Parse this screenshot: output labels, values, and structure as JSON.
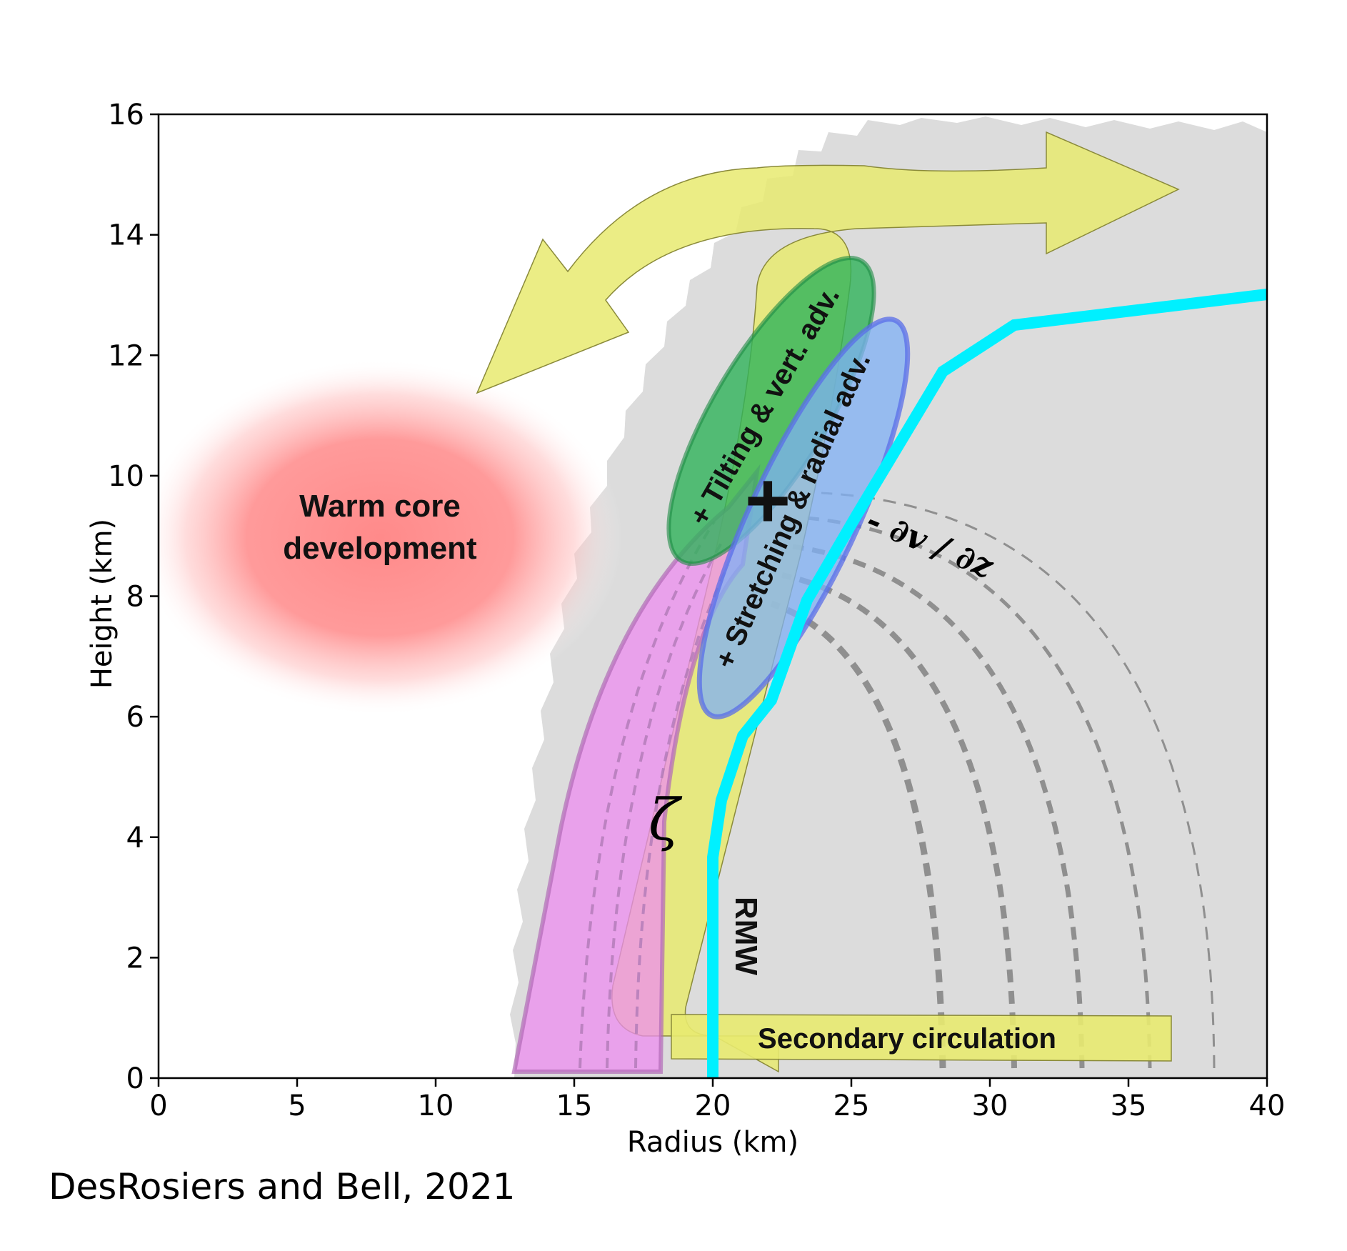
{
  "axes": {
    "xlabel": "Radius (km)",
    "ylabel": "Height (km)",
    "xlim": [
      0,
      40
    ],
    "ylim": [
      0,
      16
    ],
    "xticks": [
      "0",
      "5",
      "10",
      "15",
      "20",
      "25",
      "30",
      "35",
      "40"
    ],
    "yticks": [
      "0",
      "2",
      "4",
      "6",
      "8",
      "10",
      "12",
      "14",
      "16"
    ]
  },
  "labels": {
    "warm_core_line1": "Warm core",
    "warm_core_line2": "development",
    "tilting": "+ Tilting & vert. adv.",
    "stretching": "+ Stretching & radial adv.",
    "dvdz": "- ∂v / ∂z",
    "zeta": "ζ",
    "rmw": "RMW",
    "secondary": "Secondary circulation",
    "plus_marker": "+"
  },
  "citation": "DesRosiers and Bell, 2021",
  "colors": {
    "warm_core": "#ff8a8a",
    "outflow_arrow": "#e8ea70",
    "green_ellipse": "#2fb35a",
    "blue_ellipse": "#7fb0f5",
    "magenta_band": "#ee8ef0",
    "rmw_line": "#00f0ff",
    "grey_region": "#dcdcdc"
  }
}
